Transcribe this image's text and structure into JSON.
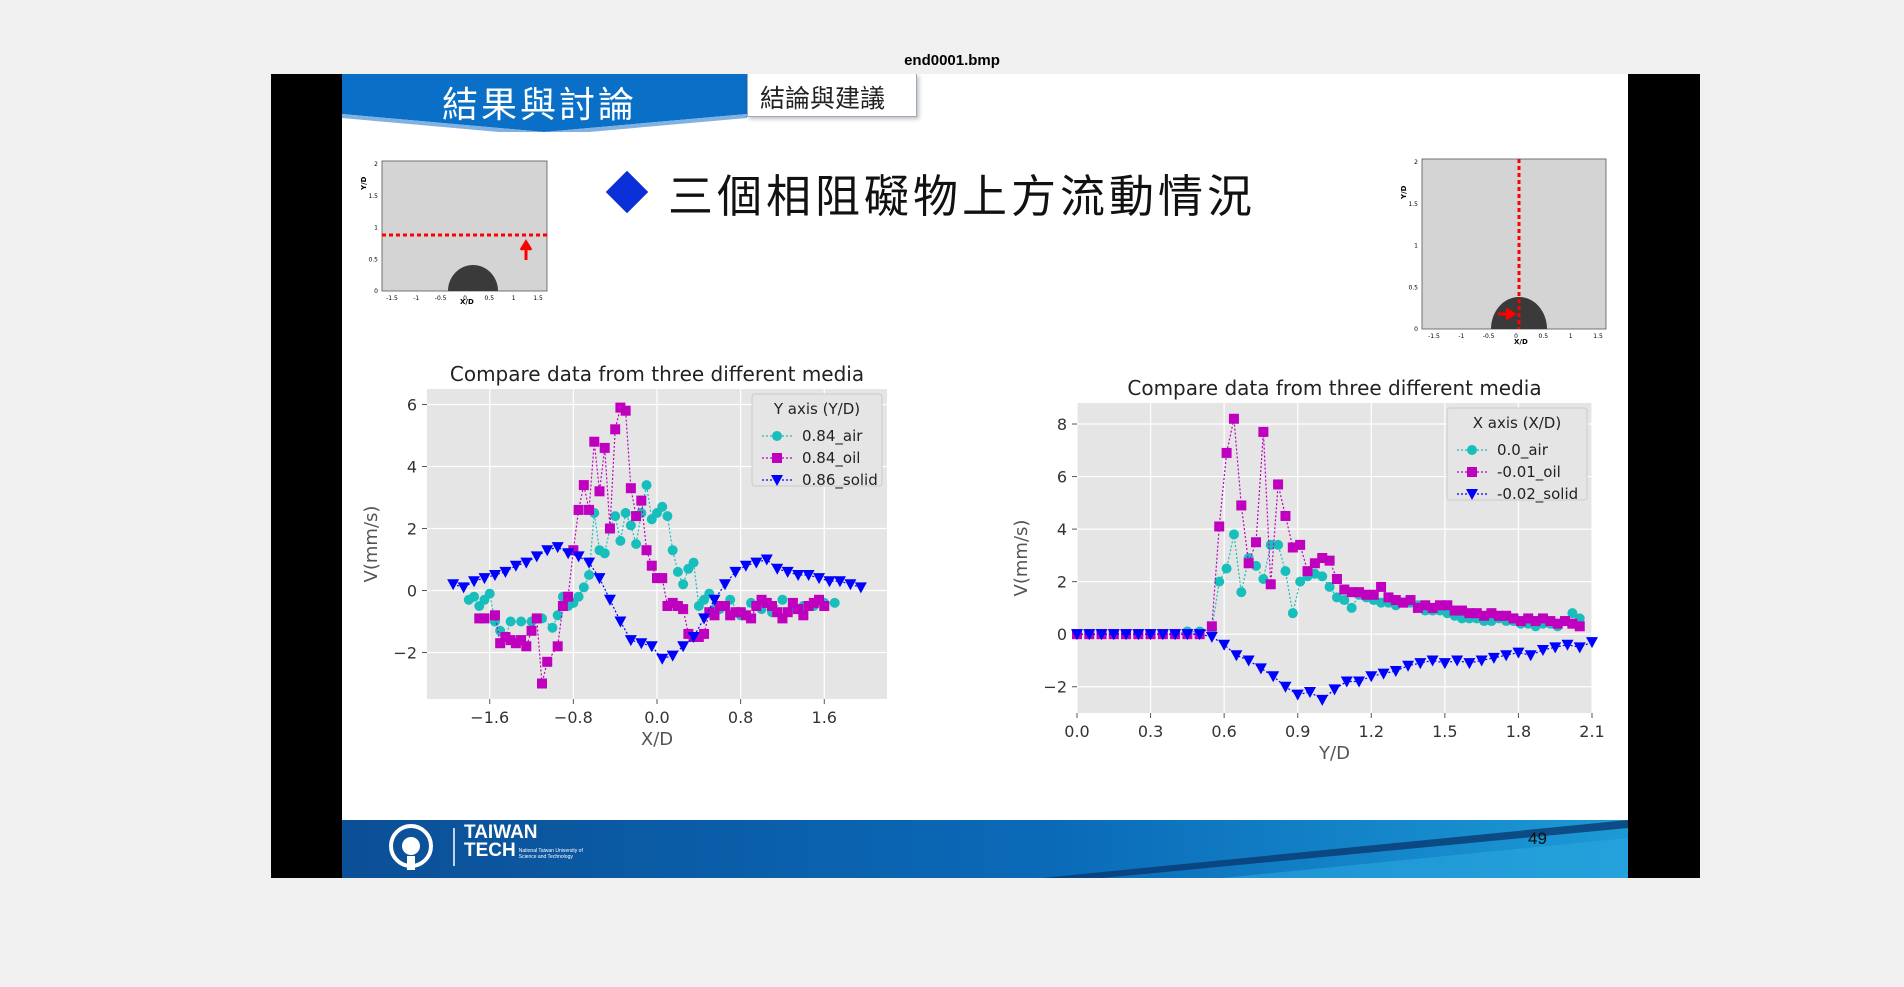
{
  "window": {
    "file_title": "end0001.bmp"
  },
  "slide": {
    "section_title": "結果與討論",
    "subsection_tab": "結論與建議",
    "heading": "三個相阻礙物上方流動情況",
    "page_number": "49",
    "logo_line1": "TAIWAN",
    "logo_line2": "TECH",
    "logo_sub1": "National Taiwan University of",
    "logo_sub2": "Science and Technology"
  },
  "colors": {
    "banner": "#0a6fc6",
    "air": "#17bebb",
    "oil": "#bf00bf",
    "solid": "#0000ff",
    "marker_red": "#ff0000",
    "footer": "#0a5ea8"
  },
  "thumbnails": {
    "left": {
      "ylabel": "Y/D",
      "xlabel": "X/D",
      "yticks": [
        "2",
        "1.5",
        "1",
        "0.5",
        "0"
      ],
      "xticks": [
        "-1.5",
        "-1",
        "-0.5",
        "0",
        "0.5",
        "1",
        "1.5"
      ],
      "line_orientation": "horizontal",
      "line_y": 0.84,
      "arrow": "up"
    },
    "right": {
      "ylabel": "Y/D",
      "xlabel": "X/D",
      "yticks": [
        "2",
        "1.5",
        "1",
        "0.5",
        "0"
      ],
      "xticks": [
        "-1.5",
        "-1",
        "-0.5",
        "0",
        "0.5",
        "1",
        "1.5"
      ],
      "line_orientation": "vertical",
      "line_x": 0,
      "arrow": "right"
    }
  },
  "chart_data": [
    {
      "type": "line",
      "title": "Compare data from three different media",
      "xlabel": "X/D",
      "ylabel": "V(mm/s)",
      "xlim": [
        -2.2,
        2.2
      ],
      "ylim": [
        -3.5,
        6.5
      ],
      "xticks": [
        -1.6,
        -0.8,
        0.0,
        0.8,
        1.6
      ],
      "yticks": [
        -2,
        0,
        2,
        4,
        6
      ],
      "xtick_labels": [
        "−1.6",
        "−0.8",
        "0.0",
        "0.8",
        "1.6"
      ],
      "ytick_labels": [
        "−2",
        "0",
        "2",
        "4",
        "6"
      ],
      "legend_title": "Y axis (Y/D)",
      "legend_position": "top-right",
      "series": [
        {
          "name": "0.84_air",
          "marker": "circle",
          "x": [
            -1.8,
            -1.75,
            -1.7,
            -1.65,
            -1.6,
            -1.55,
            -1.5,
            -1.45,
            -1.4,
            -1.3,
            -1.2,
            -1.1,
            -1.0,
            -0.95,
            -0.9,
            -0.85,
            -0.8,
            -0.75,
            -0.7,
            -0.65,
            -0.6,
            -0.55,
            -0.5,
            -0.45,
            -0.4,
            -0.35,
            -0.3,
            -0.25,
            -0.2,
            -0.15,
            -0.1,
            -0.05,
            0.0,
            0.05,
            0.1,
            0.15,
            0.2,
            0.25,
            0.3,
            0.35,
            0.4,
            0.45,
            0.5,
            0.55,
            0.6,
            0.7,
            0.8,
            0.9,
            1.0,
            1.1,
            1.2,
            1.3,
            1.4,
            1.5,
            1.6,
            1.7
          ],
          "y": [
            -0.3,
            -0.2,
            -0.5,
            -0.3,
            -0.1,
            -1.0,
            -1.3,
            -1.5,
            -1.0,
            -1.0,
            -1.0,
            -0.9,
            -1.2,
            -0.8,
            -0.2,
            -0.5,
            -0.4,
            -0.2,
            0.1,
            0.5,
            2.5,
            1.3,
            1.2,
            2.0,
            2.4,
            1.6,
            2.5,
            2.1,
            1.5,
            2.5,
            3.4,
            2.3,
            2.5,
            2.7,
            2.4,
            1.3,
            0.6,
            0.2,
            0.7,
            0.9,
            -0.5,
            -0.3,
            -0.1,
            -0.6,
            -0.6,
            -0.3,
            -0.8,
            -0.4,
            -0.6,
            -0.7,
            -0.3,
            -0.6,
            -0.5,
            -0.5,
            -0.4,
            -0.4
          ]
        },
        {
          "name": "0.84_oil",
          "marker": "square",
          "x": [
            -1.7,
            -1.65,
            -1.55,
            -1.5,
            -1.45,
            -1.4,
            -1.35,
            -1.3,
            -1.25,
            -1.2,
            -1.15,
            -1.1,
            -1.05,
            -0.95,
            -0.9,
            -0.85,
            -0.8,
            -0.75,
            -0.7,
            -0.65,
            -0.6,
            -0.55,
            -0.5,
            -0.45,
            -0.4,
            -0.35,
            -0.3,
            -0.25,
            -0.2,
            -0.15,
            -0.1,
            -0.05,
            0.0,
            0.05,
            0.1,
            0.15,
            0.2,
            0.25,
            0.3,
            0.35,
            0.4,
            0.45,
            0.5,
            0.55,
            0.6,
            0.65,
            0.7,
            0.75,
            0.8,
            0.85,
            0.9,
            0.95,
            1.0,
            1.05,
            1.1,
            1.15,
            1.2,
            1.25,
            1.3,
            1.35,
            1.4,
            1.45,
            1.5,
            1.55,
            1.6
          ],
          "y": [
            -0.9,
            -0.9,
            -0.8,
            -1.7,
            -1.5,
            -1.6,
            -1.7,
            -1.6,
            -1.8,
            -1.3,
            -0.9,
            -3.0,
            -2.3,
            -1.8,
            -0.5,
            -0.2,
            1.3,
            2.6,
            3.4,
            2.6,
            4.8,
            3.2,
            4.6,
            2.0,
            5.2,
            5.9,
            5.8,
            3.3,
            2.4,
            2.9,
            1.3,
            0.8,
            0.4,
            0.4,
            -0.5,
            -0.4,
            -0.5,
            -0.6,
            -1.4,
            -1.5,
            -1.5,
            -1.4,
            -0.7,
            -0.8,
            -0.5,
            -0.5,
            -0.8,
            -0.7,
            -0.7,
            -0.8,
            -0.9,
            -0.5,
            -0.3,
            -0.4,
            -0.5,
            -0.7,
            -0.9,
            -0.7,
            -0.4,
            -0.6,
            -0.8,
            -0.5,
            -0.4,
            -0.3,
            -0.5
          ]
        },
        {
          "name": "0.86_solid",
          "marker": "triangle-down",
          "x": [
            -1.95,
            -1.85,
            -1.75,
            -1.65,
            -1.55,
            -1.45,
            -1.35,
            -1.25,
            -1.15,
            -1.05,
            -0.95,
            -0.85,
            -0.75,
            -0.65,
            -0.55,
            -0.45,
            -0.35,
            -0.25,
            -0.15,
            -0.05,
            0.05,
            0.15,
            0.25,
            0.35,
            0.45,
            0.55,
            0.65,
            0.75,
            0.85,
            0.95,
            1.05,
            1.15,
            1.25,
            1.35,
            1.45,
            1.55,
            1.65,
            1.75,
            1.85,
            1.95
          ],
          "y": [
            0.2,
            0.1,
            0.3,
            0.4,
            0.5,
            0.6,
            0.8,
            0.9,
            1.1,
            1.3,
            1.4,
            1.2,
            1.1,
            0.9,
            0.4,
            -0.3,
            -1.0,
            -1.6,
            -1.7,
            -1.8,
            -2.2,
            -2.1,
            -1.8,
            -1.5,
            -0.9,
            -0.3,
            0.2,
            0.6,
            0.8,
            0.9,
            1.0,
            0.7,
            0.6,
            0.5,
            0.5,
            0.4,
            0.3,
            0.3,
            0.2,
            0.1
          ]
        }
      ]
    },
    {
      "type": "line",
      "title": "Compare data from three different media",
      "xlabel": "Y/D",
      "ylabel": "V(mm/s)",
      "xlim": [
        0.0,
        2.1
      ],
      "ylim": [
        -3.0,
        8.8
      ],
      "xticks": [
        0.0,
        0.3,
        0.6,
        0.9,
        1.2,
        1.5,
        1.8,
        2.1
      ],
      "yticks": [
        -2,
        0,
        2,
        4,
        6,
        8
      ],
      "xtick_labels": [
        "0.0",
        "0.3",
        "0.6",
        "0.9",
        "1.2",
        "1.5",
        "1.8",
        "2.1"
      ],
      "ytick_labels": [
        "−2",
        "0",
        "2",
        "4",
        "6",
        "8"
      ],
      "legend_title": "X axis (X/D)",
      "legend_position": "top-right",
      "series": [
        {
          "name": "0.0_air",
          "marker": "circle",
          "x": [
            0.0,
            0.05,
            0.1,
            0.15,
            0.2,
            0.25,
            0.3,
            0.35,
            0.4,
            0.45,
            0.5,
            0.55,
            0.58,
            0.61,
            0.64,
            0.67,
            0.7,
            0.73,
            0.76,
            0.79,
            0.82,
            0.85,
            0.88,
            0.91,
            0.94,
            0.97,
            1.0,
            1.03,
            1.06,
            1.09,
            1.12,
            1.15,
            1.18,
            1.21,
            1.24,
            1.27,
            1.3,
            1.33,
            1.36,
            1.39,
            1.42,
            1.45,
            1.48,
            1.51,
            1.54,
            1.57,
            1.6,
            1.63,
            1.66,
            1.69,
            1.72,
            1.75,
            1.78,
            1.81,
            1.84,
            1.87,
            1.9,
            1.93,
            1.96,
            1.99,
            2.02,
            2.05
          ],
          "y": [
            0.0,
            0.0,
            0.0,
            0.0,
            0.0,
            0.0,
            0.0,
            0.0,
            0.0,
            0.1,
            0.1,
            0.2,
            2.0,
            2.5,
            3.8,
            1.6,
            2.9,
            2.6,
            2.1,
            3.4,
            3.4,
            2.4,
            0.8,
            2.0,
            2.2,
            2.3,
            2.2,
            1.8,
            1.4,
            1.3,
            1.0,
            1.5,
            1.4,
            1.3,
            1.2,
            1.2,
            1.1,
            1.2,
            1.2,
            1.1,
            0.9,
            0.9,
            0.9,
            0.8,
            0.7,
            0.6,
            0.6,
            0.6,
            0.5,
            0.5,
            0.6,
            0.5,
            0.5,
            0.4,
            0.4,
            0.3,
            0.4,
            0.4,
            0.3,
            0.5,
            0.8,
            0.6
          ]
        },
        {
          "name": "-0.01_oil",
          "marker": "square",
          "x": [
            0.0,
            0.05,
            0.1,
            0.15,
            0.2,
            0.25,
            0.3,
            0.35,
            0.4,
            0.45,
            0.5,
            0.55,
            0.58,
            0.61,
            0.64,
            0.67,
            0.7,
            0.73,
            0.76,
            0.79,
            0.82,
            0.85,
            0.88,
            0.91,
            0.94,
            0.97,
            1.0,
            1.03,
            1.06,
            1.09,
            1.12,
            1.15,
            1.18,
            1.21,
            1.24,
            1.27,
            1.3,
            1.33,
            1.36,
            1.39,
            1.42,
            1.45,
            1.48,
            1.51,
            1.54,
            1.57,
            1.6,
            1.63,
            1.66,
            1.69,
            1.72,
            1.75,
            1.78,
            1.81,
            1.84,
            1.87,
            1.9,
            1.93,
            1.96,
            1.99,
            2.02,
            2.05
          ],
          "y": [
            0.0,
            0.0,
            0.0,
            0.0,
            0.0,
            0.0,
            0.0,
            0.0,
            0.0,
            0.0,
            0.0,
            0.3,
            4.1,
            6.9,
            8.2,
            4.9,
            2.7,
            3.5,
            7.7,
            1.9,
            5.7,
            4.5,
            3.3,
            3.4,
            2.4,
            2.7,
            2.9,
            2.8,
            2.1,
            1.7,
            1.6,
            1.6,
            1.5,
            1.5,
            1.8,
            1.4,
            1.3,
            1.2,
            1.3,
            1.0,
            1.1,
            1.0,
            1.1,
            1.1,
            0.9,
            0.9,
            0.8,
            0.8,
            0.7,
            0.8,
            0.7,
            0.7,
            0.6,
            0.5,
            0.6,
            0.5,
            0.6,
            0.5,
            0.4,
            0.5,
            0.4,
            0.3
          ]
        },
        {
          "name": "-0.02_solid",
          "marker": "triangle-down",
          "x": [
            0.0,
            0.05,
            0.1,
            0.15,
            0.2,
            0.25,
            0.3,
            0.35,
            0.4,
            0.45,
            0.5,
            0.55,
            0.6,
            0.65,
            0.7,
            0.75,
            0.8,
            0.85,
            0.9,
            0.95,
            1.0,
            1.05,
            1.1,
            1.15,
            1.2,
            1.25,
            1.3,
            1.35,
            1.4,
            1.45,
            1.5,
            1.55,
            1.6,
            1.65,
            1.7,
            1.75,
            1.8,
            1.85,
            1.9,
            1.95,
            2.0,
            2.05,
            2.1
          ],
          "y": [
            0.0,
            0.0,
            0.0,
            0.0,
            0.0,
            0.0,
            0.0,
            0.0,
            0.0,
            0.0,
            0.0,
            -0.1,
            -0.4,
            -0.8,
            -1.0,
            -1.3,
            -1.6,
            -2.0,
            -2.3,
            -2.2,
            -2.5,
            -2.1,
            -1.8,
            -1.8,
            -1.6,
            -1.5,
            -1.4,
            -1.2,
            -1.1,
            -1.0,
            -1.1,
            -1.0,
            -1.1,
            -1.0,
            -0.9,
            -0.8,
            -0.7,
            -0.8,
            -0.6,
            -0.5,
            -0.4,
            -0.5,
            -0.3
          ]
        }
      ]
    }
  ]
}
